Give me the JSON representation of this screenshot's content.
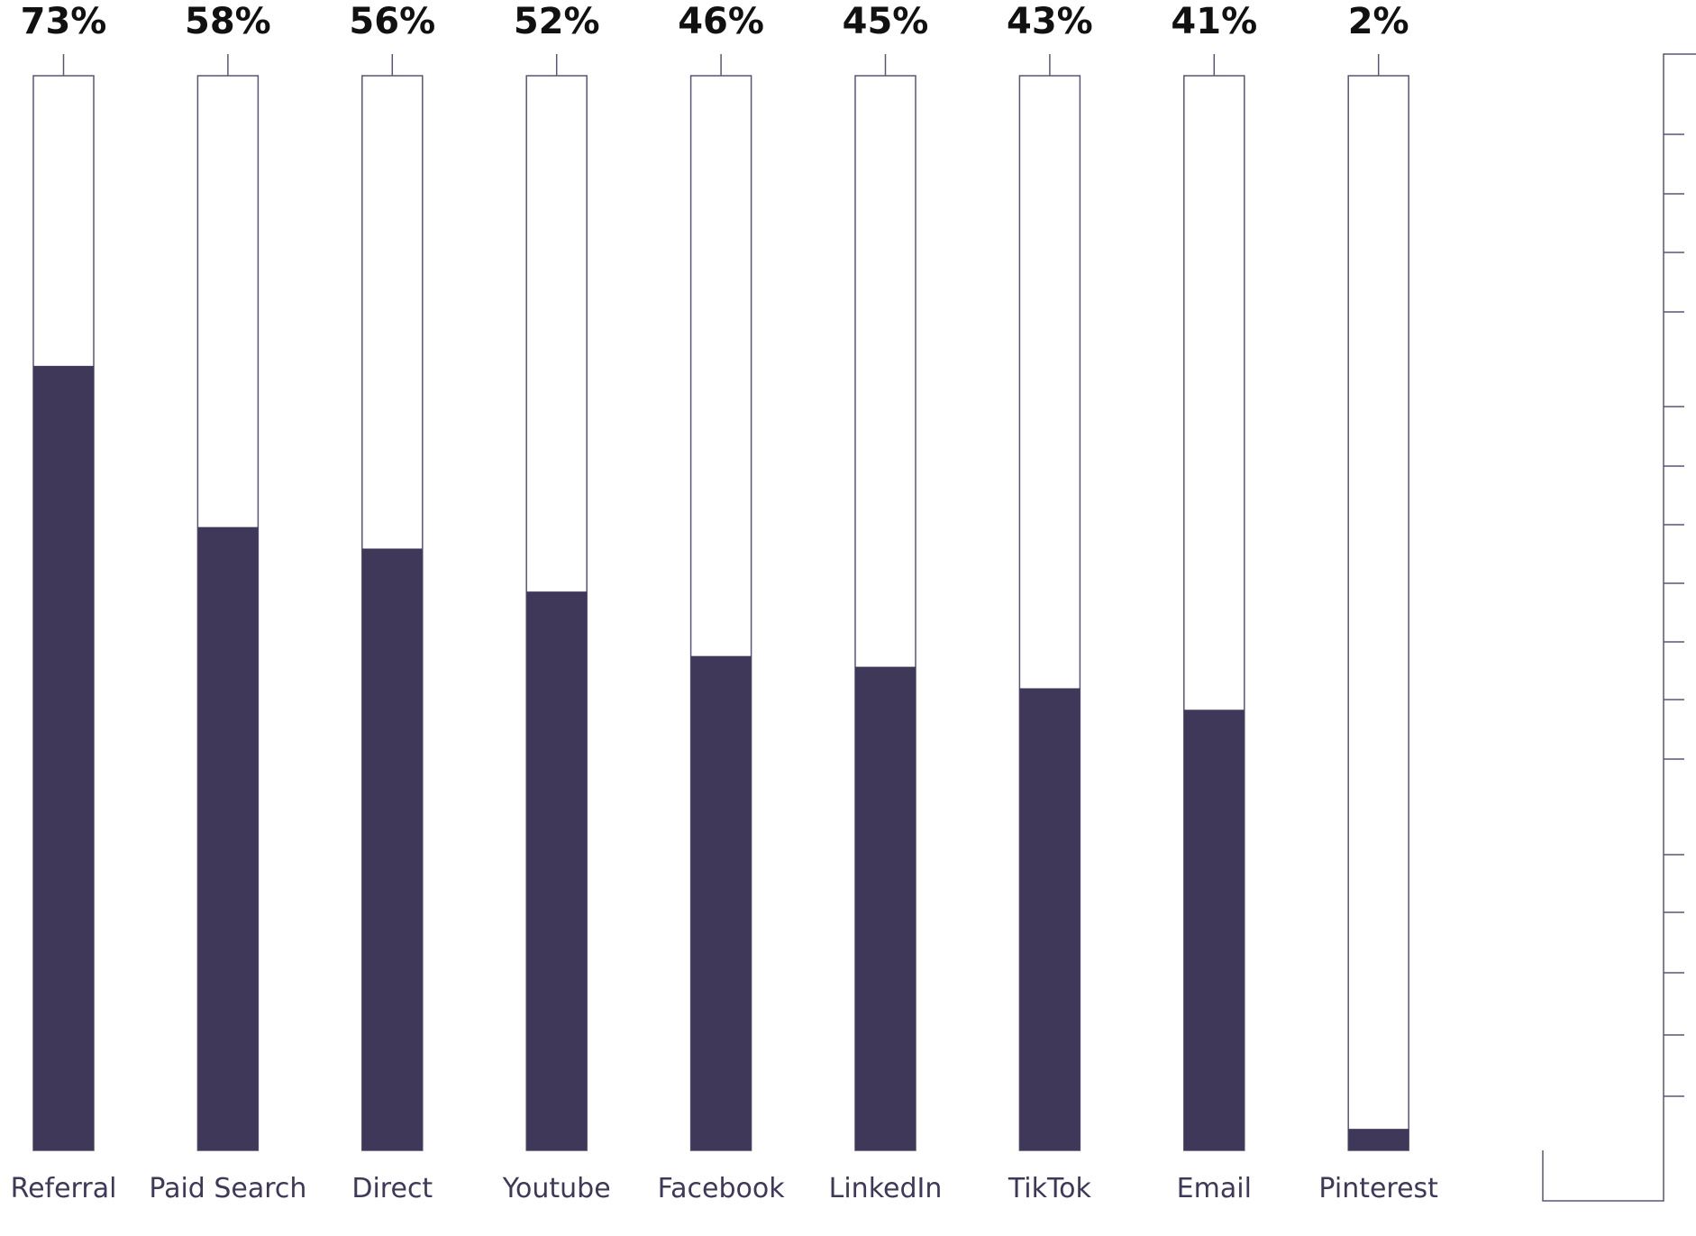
{
  "chart_data": {
    "type": "bar",
    "categories": [
      "Referral",
      "Paid Search",
      "Direct",
      "Youtube",
      "Facebook",
      "LinkedIn",
      "TikTok",
      "Email",
      "Pinterest"
    ],
    "values": [
      73,
      58,
      56,
      52,
      46,
      45,
      43,
      41,
      2
    ],
    "value_labels": [
      "73%",
      "58%",
      "56%",
      "52%",
      "46%",
      "45%",
      "43%",
      "41%",
      "2%"
    ],
    "extra_categories_note_unused": null,
    "color": "#3f3859",
    "ylim": [
      0,
      100
    ]
  }
}
